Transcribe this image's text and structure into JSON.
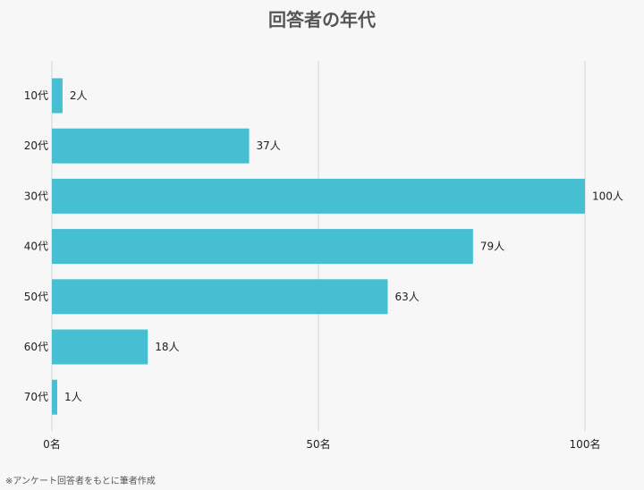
{
  "title": "回答者の年代",
  "footnote": "※アンケート回答者をもとに筆者作成",
  "colors": {
    "bar": "#47bfd2",
    "grid": "#d6d6d6",
    "text": "#222222",
    "background": "#f7f7f7"
  },
  "chart_data": {
    "type": "bar",
    "orientation": "horizontal",
    "categories": [
      "10代",
      "20代",
      "30代",
      "40代",
      "50代",
      "60代",
      "70代"
    ],
    "values": [
      2,
      37,
      100,
      79,
      63,
      18,
      1
    ],
    "value_labels": [
      "2人",
      "37人",
      "100人",
      "79人",
      "63人",
      "18人",
      "1人"
    ],
    "xlim": [
      0,
      100
    ],
    "x_ticks": [
      0,
      50,
      100
    ],
    "x_tick_labels": [
      "0名",
      "50名",
      "100名"
    ],
    "grid": true,
    "legend": "none"
  }
}
